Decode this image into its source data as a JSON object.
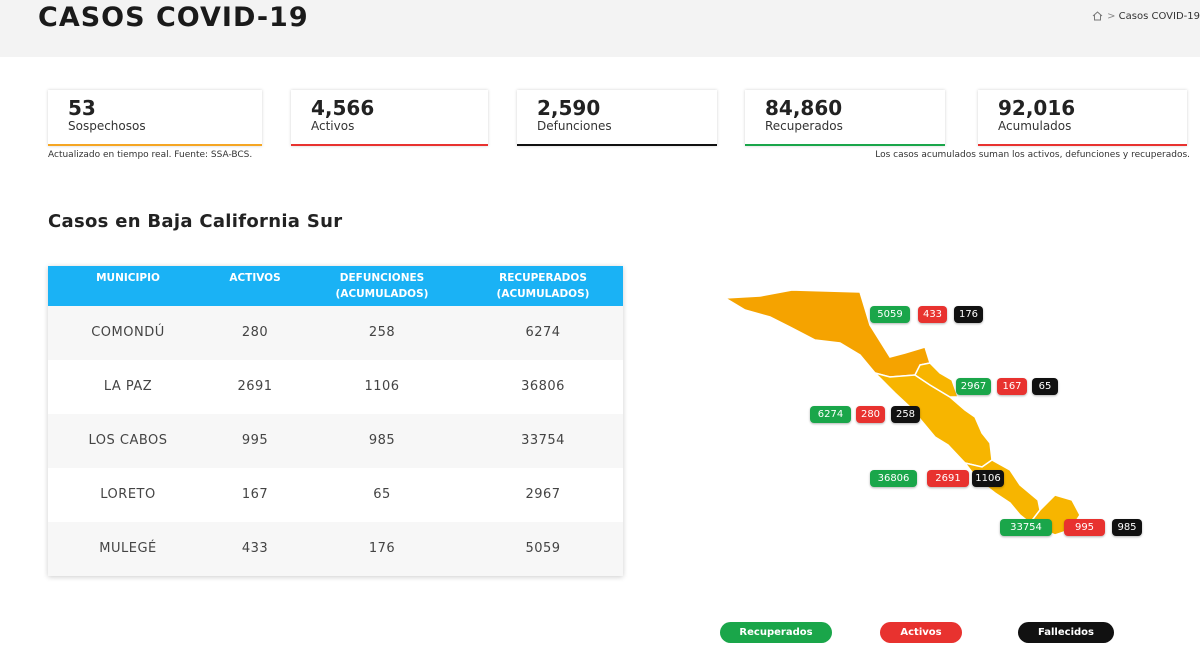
{
  "header": {
    "title": "CASOS COVID-19",
    "breadcrumb": "Casos COVID-19"
  },
  "cards": [
    {
      "value": "53",
      "label": "Sospechosos"
    },
    {
      "value": "4,566",
      "label": "Activos"
    },
    {
      "value": "2,590",
      "label": "Defunciones"
    },
    {
      "value": "84,860",
      "label": "Recuperados"
    },
    {
      "value": "92,016",
      "label": "Acumulados"
    }
  ],
  "notes": {
    "left": "Actualizado en tiempo real. Fuente: SSA-BCS.",
    "right": "Los casos acumulados suman los activos, defunciones y recuperados."
  },
  "section_title": "Casos en Baja California Sur",
  "table": {
    "columns": [
      "MUNICIPIO",
      "ACTIVOS",
      "DEFUNCIONES (ACUMULADOS)",
      "RECUPERADOS (ACUMULADOS)"
    ],
    "rows": [
      [
        "COMONDÚ",
        "280",
        "258",
        "6274"
      ],
      [
        "LA PAZ",
        "2691",
        "1106",
        "36806"
      ],
      [
        "LOS CABOS",
        "995",
        "985",
        "33754"
      ],
      [
        "LORETO",
        "167",
        "65",
        "2967"
      ],
      [
        "MULEGÉ",
        "433",
        "176",
        "5059"
      ]
    ]
  },
  "map": {
    "badges": [
      {
        "recuperados": "5059",
        "activos": "433",
        "fallecidos": "176"
      },
      {
        "recuperados": "2967",
        "activos": "167",
        "fallecidos": "65"
      },
      {
        "recuperados": "6274",
        "activos": "280",
        "fallecidos": "258"
      },
      {
        "recuperados": "36806",
        "activos": "2691",
        "fallecidos": "1106"
      },
      {
        "recuperados": "33754",
        "activos": "995",
        "fallecidos": "985"
      }
    ]
  },
  "legend": [
    "Recuperados",
    "Activos",
    "Fallecidos"
  ]
}
